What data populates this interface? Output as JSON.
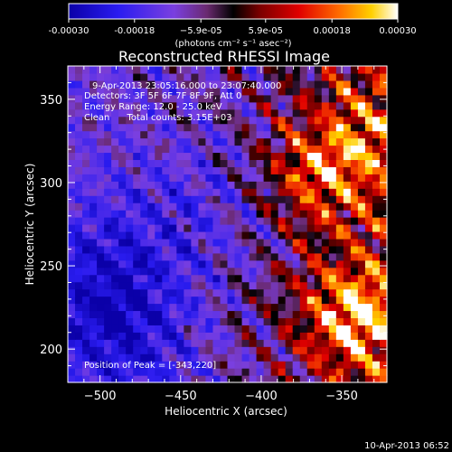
{
  "colorbar": {
    "tick_labels": [
      "-0.00030",
      "-0.00018",
      "−5.9e-05",
      "5.9e-05",
      "0.00018",
      "0.00030"
    ],
    "units": "(photons cm⁻² s⁻¹ asec⁻²)",
    "range": [
      -0.0003,
      0.0003
    ],
    "colors": [
      "#0b00a8",
      "#3a1de8",
      "#7a3fe0",
      "#7a2a6a",
      "#000000",
      "#8a0000",
      "#e60000",
      "#ff6a00",
      "#ffd000",
      "#ffffff"
    ]
  },
  "plot": {
    "title": "Reconstructed RHESSI Image",
    "info_lines": [
      "9-Apr-2013 23:05:16.000 to 23:07:40.000",
      "Detectors: 3F 5F 6F 7F 8F 9F, Att 0",
      "Energy Range: 12.0 - 25.0 keV",
      "Clean      Total counts: 3.15E+03"
    ],
    "peak_label": "Position of Peak = [-343,220]"
  },
  "footer": {
    "timestamp": "10-Apr-2013 06:52"
  },
  "chart_data": {
    "type": "heatmap",
    "title": "Reconstructed RHESSI Image",
    "xlabel": "Heliocentric X (arcsec)",
    "ylabel": "Heliocentric Y (arcsec)",
    "xlim": [
      -520,
      -322
    ],
    "ylim": [
      180,
      370
    ],
    "x_ticks": [
      -500,
      -450,
      -400,
      -350
    ],
    "y_ticks": [
      200,
      250,
      300,
      350
    ],
    "x_tick_labels": [
      "−500",
      "−450",
      "−400",
      "−350"
    ],
    "y_tick_labels": [
      "200",
      "250",
      "300",
      "350"
    ],
    "peak": [
      -343,
      220
    ],
    "value_range": [
      -0.0003,
      0.0003
    ],
    "bright_regions": [
      {
        "x": -343,
        "y": 220,
        "value": 0.0003
      },
      {
        "x": -365,
        "y": 305,
        "value": 0.00022
      },
      {
        "x": -335,
        "y": 330,
        "value": 0.00015
      }
    ],
    "dark_regions": [
      {
        "x": -500,
        "y": 240,
        "value": -0.00024
      },
      {
        "x": -480,
        "y": 200,
        "value": -0.0002
      },
      {
        "x": -440,
        "y": 280,
        "value": -0.00015
      }
    ]
  }
}
